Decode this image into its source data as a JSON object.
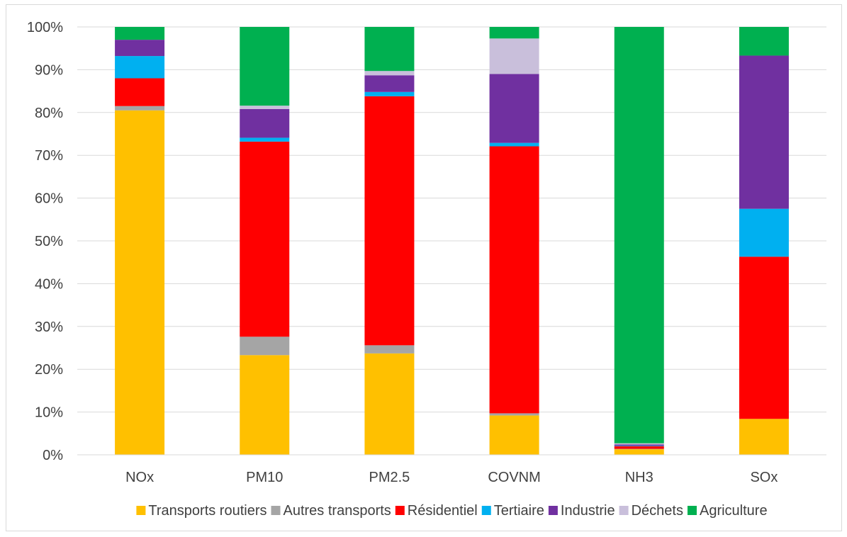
{
  "chart_data": {
    "type": "bar",
    "stacked": true,
    "percent": true,
    "title": "",
    "xlabel": "",
    "ylabel": "",
    "ylim": [
      0,
      100
    ],
    "yticks": [
      "0%",
      "10%",
      "20%",
      "30%",
      "40%",
      "50%",
      "60%",
      "70%",
      "80%",
      "90%",
      "100%"
    ],
    "grid": true,
    "legend_position": "bottom",
    "categories": [
      "NOx",
      "PM10",
      "PM2.5",
      "COVNM",
      "NH3",
      "SOx"
    ],
    "series": [
      {
        "name": "Transports routiers",
        "color": "#FFC000",
        "values": [
          80.5,
          23.3,
          23.7,
          9.2,
          1.3,
          8.4
        ]
      },
      {
        "name": "Autres transports",
        "color": "#A5A5A5",
        "values": [
          1.0,
          4.3,
          1.9,
          0.5,
          0.1,
          0.0
        ]
      },
      {
        "name": "Résidentiel",
        "color": "#FF0000",
        "values": [
          6.5,
          45.6,
          58.2,
          62.4,
          0.6,
          37.9
        ]
      },
      {
        "name": "Tertiaire",
        "color": "#00B0F0",
        "values": [
          5.2,
          0.9,
          1.0,
          0.8,
          0.1,
          11.2
        ]
      },
      {
        "name": "Industrie",
        "color": "#7030A0",
        "values": [
          3.8,
          6.7,
          3.9,
          16.1,
          0.3,
          35.8
        ]
      },
      {
        "name": "Déchets",
        "color": "#C9BFDB",
        "values": [
          0.0,
          0.8,
          1.0,
          8.3,
          0.3,
          0.0
        ]
      },
      {
        "name": "Agriculture",
        "color": "#00B050",
        "values": [
          3.0,
          18.4,
          10.3,
          2.7,
          97.3,
          6.7
        ]
      }
    ]
  }
}
